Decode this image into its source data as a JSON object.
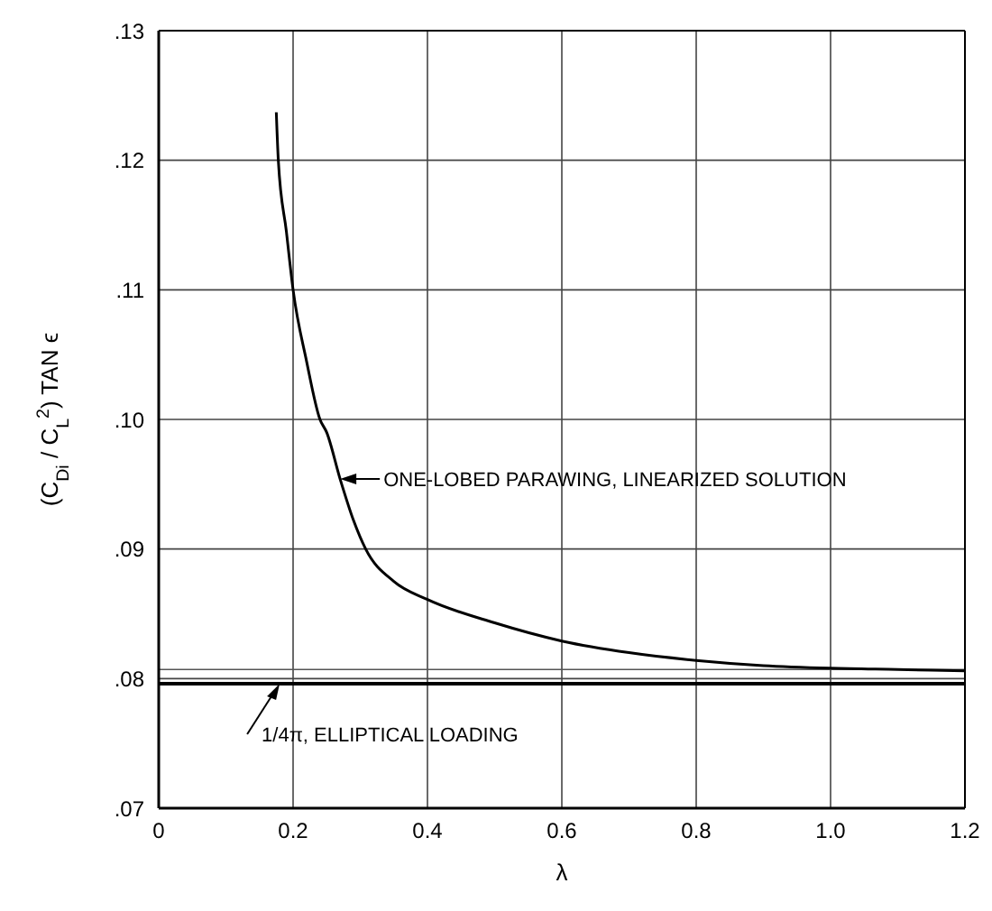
{
  "chart_data": {
    "type": "line",
    "xlabel": "λ",
    "ylabel": "(C$_{Di}$ / C$_{L}$$^{2}$) TAN ϵ",
    "series": [
      {
        "color": "#000000",
        "x": [
          0.175,
          0.178,
          0.19,
          0.2,
          0.22,
          0.24,
          0.25,
          0.27,
          0.29,
          0.308,
          0.35,
          0.4,
          0.5,
          0.6,
          0.7,
          0.8,
          0.9,
          1.0,
          1.1,
          1.2
        ],
        "values": [
          0.1237,
          0.12,
          0.1145,
          0.11,
          0.1045,
          0.1,
          0.099,
          0.0954,
          0.0922,
          0.09,
          0.0875,
          0.0861,
          0.0843,
          0.0829,
          0.082,
          0.0814,
          0.081,
          0.0808,
          0.0807,
          0.0806
        ]
      }
    ],
    "ref_lines": [
      {
        "axis": "y",
        "value": 0.0796,
        "label": "1/4π, ELLIPTICAL LOADING",
        "color": "#000000"
      },
      {
        "axis": "y",
        "value": 0.0807,
        "color": "#555555"
      }
    ],
    "annotations": [
      {
        "text": "ONE-LOBED PARAWING, LINEARIZED SOLUTION",
        "x": 0.27,
        "y": 0.0954
      }
    ],
    "xlim": [
      0,
      1.2
    ],
    "xticks": [
      {
        "value": 0,
        "label": "0"
      },
      0.2,
      0.4,
      0.6,
      0.8,
      {
        "value": 1.0,
        "label": "1.0"
      },
      {
        "value": 1.2,
        "label": "1.2"
      }
    ],
    "ylim": [
      0.07,
      0.13
    ],
    "yticks": [
      {
        "value": 0.07,
        "label": ".07"
      },
      {
        "value": 0.08,
        "label": ".08"
      },
      {
        "value": 0.09,
        "label": ".09"
      },
      {
        "value": 0.1,
        "label": ".10"
      },
      {
        "value": 0.11,
        "label": ".11"
      },
      {
        "value": 0.12,
        "label": ".12"
      },
      {
        "value": 0.13,
        "label": ".13"
      }
    ],
    "grid": true,
    "marker": "none",
    "line_style": "solid",
    "legend": false
  }
}
